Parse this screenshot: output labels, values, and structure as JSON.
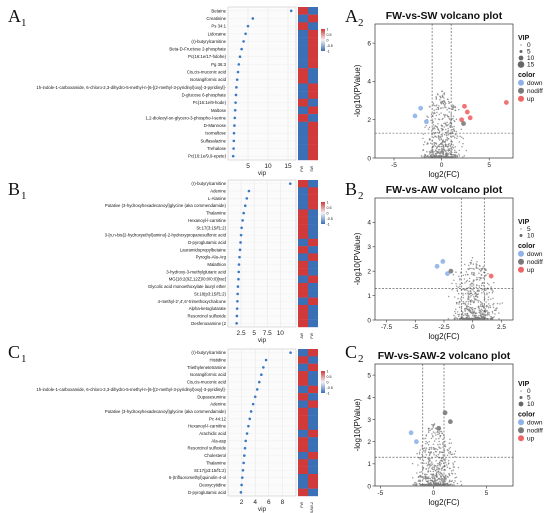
{
  "panel_labels": {
    "a1": {
      "letter": "A",
      "sub": "1"
    },
    "a2": {
      "letter": "A",
      "sub": "2"
    },
    "b1": {
      "letter": "B",
      "sub": "1"
    },
    "b2": {
      "letter": "B",
      "sub": "2"
    },
    "c1": {
      "letter": "C",
      "sub": "1"
    },
    "c2": {
      "letter": "C",
      "sub": "2"
    }
  },
  "colors": {
    "heat_high": "#d03a3a",
    "heat_low": "#3b6fb6",
    "down": "#8fb2e8",
    "nodiff": "#7a7a7a",
    "up": "#ef6464",
    "vip_dot": "#3b78c4"
  },
  "chart_data": [
    {
      "type": "scatter",
      "panel": "A1",
      "xlabel": "vip",
      "xlim": [
        0,
        17
      ],
      "xticks": [
        5,
        10,
        15
      ],
      "metabolites": [
        "Betaine",
        "Creatinine",
        "Ps 34:1",
        "Lidocaine",
        "(r)-butyrylcarnitine",
        "Beta-D-Fructose 2-phosphate",
        "Pc(16:1e/17-hdohe)",
        "Pg 36:3",
        "Cis,cis-muconic acid",
        "Isorangiformic acid",
        "1h-indole-1-carboxamide, 6-chloro-2,3-dihydro-5-methyl-n-[6-[(2-methyl-3-pyridinyl)oxy]-3-pyridinyl]-",
        "D-glucose 6-phosphate",
        "Pc(16:1e/9-hode)",
        "Maltose",
        "1,2-dioleoyl-sn-glycero-3-phospho-l-serine",
        "D-Mannose",
        "Isomaltose",
        "Sulfasalazine",
        "Trehalose",
        "Pc(16:1e/9,9-epete)"
      ],
      "values": [
        15.8,
        6.2,
        5.0,
        4.4,
        3.9,
        3.4,
        3.0,
        2.7,
        2.5,
        2.3,
        2.1,
        2.0,
        1.9,
        1.8,
        1.7,
        1.6,
        1.5,
        1.45,
        1.4,
        1.3
      ],
      "heatmap_columns": [
        "FW",
        "SW"
      ],
      "heatmap_pattern": [
        "hl",
        "lh",
        "hl",
        "lh",
        "lh",
        "lh",
        "lh",
        "lh",
        "hl",
        "hl",
        "lh",
        "lh",
        "hl",
        "lh",
        "hl",
        "lh",
        "lh",
        "lh",
        "lh",
        "lh"
      ],
      "colorbar_ticks": [
        "1",
        "0.5",
        "0",
        "-0.5",
        "-1"
      ]
    },
    {
      "type": "scatter",
      "panel": "B1",
      "xlabel": "vip",
      "xlim": [
        0,
        13
      ],
      "xticks": [
        2.5,
        5,
        7.5,
        10
      ],
      "metabolites": [
        "(r)-butyrylcarnitine",
        "Adenine",
        "L-Alanine",
        "Putative (3-hydroxyhexadecanoyl)glycine (aka commendamide)",
        "Thalamine",
        "Hexanoyl-l-carnitine",
        "St:17(3:15/f1:2)",
        "3-[n,n-bis(2-hydroxyethyl)amino]-2-hydroxypropanesulfonic acid",
        "D-pyroglutamic acid",
        "Lauramidopropylbetaine",
        "Pyroglu-Ala-Arg",
        "Malathion",
        "3-hydroxy-3-methylglutaric acid",
        "MG(18:2(9Z,12Z)/0:0/0:0)[rac]",
        "Glycolic acid monoethoxylate lauryl ether",
        "St:18(p3:15/f1:2)",
        "4-methyl-2',4',6'-trimethoxychalcone",
        "Alpha-ketoglutarate",
        "Resorcinol sulfoxide",
        "Desfenoxamine (2"
      ],
      "values": [
        11.9,
        4.0,
        3.6,
        3.3,
        3.0,
        2.8,
        2.6,
        2.5,
        2.4,
        2.3,
        2.2,
        2.1,
        2.05,
        2.0,
        1.9,
        1.85,
        1.8,
        1.75,
        1.7,
        1.65
      ],
      "heatmap_columns": [
        "AW",
        "FW"
      ],
      "heatmap_pattern": [
        "hl",
        "lh",
        "lh",
        "lh",
        "hl",
        "hl",
        "hl",
        "hl",
        "lh",
        "hl",
        "lh",
        "hl",
        "hl",
        "lh",
        "hl",
        "hl",
        "lh",
        "hl",
        "hl",
        "hl"
      ],
      "colorbar_ticks": [
        "1",
        "0.5",
        "0",
        "-0.5",
        "-1"
      ]
    },
    {
      "type": "scatter",
      "panel": "C1",
      "xlabel": "vip",
      "xlim": [
        0,
        10
      ],
      "xticks": [
        2,
        4,
        6,
        8
      ],
      "metabolites": [
        "(r)-butyrylcarnitine",
        "Histidine",
        "Triethylenetetramine",
        "Isorangiformic acid",
        "Cis,cis-muconic acid",
        "1h-indole-1-carboxamide, 6-chloro-2,3-dihydro-5-methyl-n-[6-[(2-methyl-3-pyridinyl)oxy]-3-pyridinyl]-",
        "Dupasesumine",
        "Adenine",
        "Putative (3-hydroxyhexadecanoyl)glycine (aka commendamide)",
        "Pc 44:12",
        "Hexanoyl-l-carnitine",
        "Arachidic acid",
        "Ala-asp",
        "Resorcinol sulfoxide",
        "Cholesterol",
        "Thalamine",
        "St:17(p3:15/f1:2)",
        "6-(trifluoromethyl)quinolin-4-ol",
        "Deoxycytidine",
        "D-pyroglutamic acid"
      ],
      "values": [
        9.2,
        5.6,
        5.2,
        4.9,
        4.6,
        4.3,
        4.0,
        3.7,
        3.4,
        3.2,
        3.0,
        2.8,
        2.6,
        2.5,
        2.4,
        2.3,
        2.2,
        2.1,
        2.0,
        1.9
      ],
      "heatmap_columns": [
        "FW",
        "SAW-2"
      ],
      "heatmap_pattern": [
        "lh",
        "hl",
        "lh",
        "hl",
        "hl",
        "lh",
        "hl",
        "lh",
        "hl",
        "hl",
        "hl",
        "lh",
        "hl",
        "hl",
        "lh",
        "hl",
        "hl",
        "lh",
        "lh",
        "hl"
      ],
      "colorbar_ticks": [
        "1",
        "0.5",
        "0",
        "-0.5",
        "-1"
      ]
    },
    {
      "type": "scatter",
      "panel": "A2",
      "title": "FW-vs-SW volcano plot",
      "xlabel": "log2(FC)",
      "ylabel": "-log10(PValue)",
      "xlim": [
        -7,
        7.5
      ],
      "ylim": [
        0,
        7
      ],
      "xticks": [
        -5,
        0,
        5
      ],
      "yticks": [
        0,
        2,
        4,
        6
      ],
      "threshold_x": [
        -1,
        1
      ],
      "threshold_y": 1.3,
      "legend": {
        "vip_title": "VIP",
        "vip_values": [
          "0",
          "5",
          "10",
          "15"
        ],
        "color_title": "color",
        "color_values": [
          "down",
          "nodiff",
          "up"
        ]
      },
      "highlight_points": [
        {
          "x": 6.8,
          "y": 2.9,
          "class": "up"
        },
        {
          "x": 2.4,
          "y": 2.7,
          "class": "up"
        },
        {
          "x": 2.7,
          "y": 2.4,
          "class": "up"
        },
        {
          "x": 3.0,
          "y": 2.1,
          "class": "up"
        },
        {
          "x": 2.1,
          "y": 2.0,
          "class": "up"
        },
        {
          "x": -2.2,
          "y": 2.6,
          "class": "down"
        },
        {
          "x": -2.8,
          "y": 2.2,
          "class": "down"
        },
        {
          "x": -1.6,
          "y": 1.9,
          "class": "down"
        },
        {
          "x": 2.3,
          "y": 1.8,
          "class": "nodiff"
        }
      ]
    },
    {
      "type": "scatter",
      "panel": "B2",
      "title": "FW-vs-AW volcano plot",
      "xlabel": "log2(FC)",
      "ylabel": "-log10(PValue)",
      "xlim": [
        -8.5,
        3.5
      ],
      "ylim": [
        0,
        5
      ],
      "xticks": [
        -7.5,
        -5.0,
        -2.5,
        0,
        2.5
      ],
      "yticks": [
        0,
        1,
        2,
        3,
        4
      ],
      "threshold_x": [
        -1,
        1
      ],
      "threshold_y": 1.3,
      "legend": {
        "vip_title": "VIP",
        "vip_values": [
          "5",
          "10"
        ],
        "color_title": "color",
        "color_values": [
          "down",
          "nodiff",
          "up"
        ]
      },
      "highlight_points": [
        {
          "x": -2.6,
          "y": 2.4,
          "class": "down"
        },
        {
          "x": -3.1,
          "y": 2.2,
          "class": "down"
        },
        {
          "x": -2.2,
          "y": 1.9,
          "class": "down"
        },
        {
          "x": 1.6,
          "y": 1.8,
          "class": "up"
        },
        {
          "x": -1.9,
          "y": 2.0,
          "class": "nodiff"
        }
      ]
    },
    {
      "type": "scatter",
      "panel": "C2",
      "title": "FW-vs-SAW-2 volcano plot",
      "xlabel": "log2(FC)",
      "ylabel": "-log10(PValue)",
      "xlim": [
        -5.5,
        7.5
      ],
      "ylim": [
        0,
        5.5
      ],
      "xticks": [
        -5,
        0,
        5
      ],
      "yticks": [
        0,
        1,
        2,
        3,
        4,
        5
      ],
      "threshold_x": [
        -1,
        1
      ],
      "threshold_y": 1.3,
      "legend": {
        "vip_title": "VIP",
        "vip_values": [
          "0",
          "5",
          "10"
        ],
        "color_title": "color",
        "color_values": [
          "down",
          "nodiff",
          "up"
        ]
      },
      "highlight_points": [
        {
          "x": -2.1,
          "y": 2.4,
          "class": "down"
        },
        {
          "x": -1.6,
          "y": 2.0,
          "class": "down"
        },
        {
          "x": 1.1,
          "y": 3.3,
          "class": "nodiff"
        },
        {
          "x": 1.6,
          "y": 2.9,
          "class": "nodiff"
        },
        {
          "x": 0.5,
          "y": 2.6,
          "class": "nodiff"
        }
      ]
    }
  ]
}
